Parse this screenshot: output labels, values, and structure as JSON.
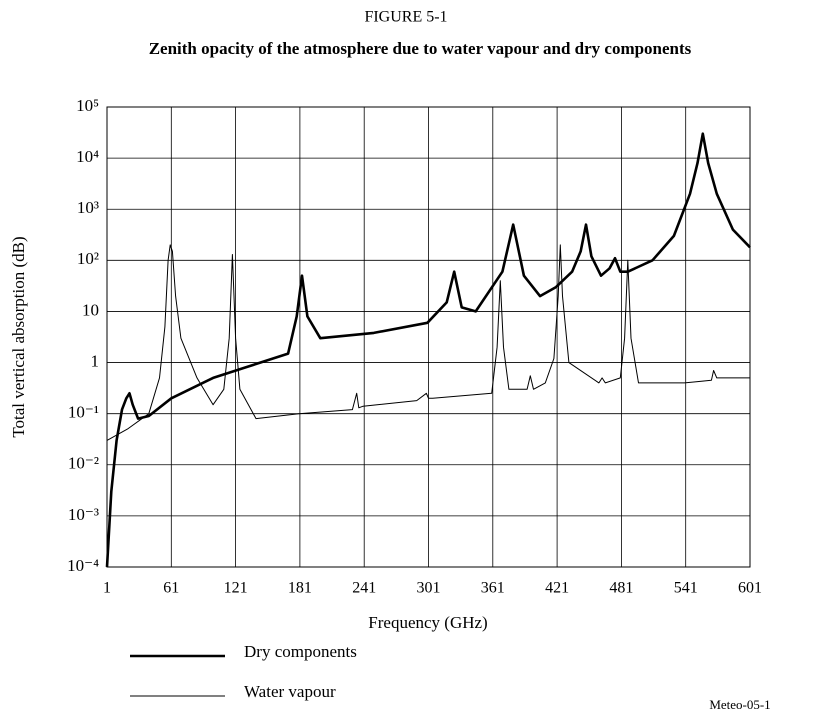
{
  "chart_data": {
    "type": "line",
    "figure_label": "FIGURE 5-1",
    "title": "Zenith opacity of the atmosphere due to water vapour and dry components",
    "xlabel": "Frequency (GHz)",
    "ylabel": "Total vertical absorption (dB)",
    "note": "Meteo-05-1",
    "yscale": "log",
    "grid": true,
    "legend": "bottom",
    "xlim": [
      1,
      601
    ],
    "ylim": [
      0.0001,
      100000
    ],
    "xticks": [
      1,
      61,
      121,
      181,
      241,
      301,
      361,
      421,
      481,
      541,
      601
    ],
    "yticks": [
      {
        "value": 0.0001,
        "label": "10⁻⁴"
      },
      {
        "value": 0.001,
        "label": "10⁻³"
      },
      {
        "value": 0.01,
        "label": "10⁻²"
      },
      {
        "value": 0.1,
        "label": "10⁻¹"
      },
      1,
      10,
      {
        "value": 100,
        "label": "10²"
      },
      {
        "value": 1000,
        "label": "10³"
      },
      {
        "value": 10000,
        "label": "10⁴"
      },
      {
        "value": 100000,
        "label": "10⁵"
      }
    ],
    "series": [
      {
        "name": "Dry components",
        "color": "#000000",
        "width": 2.6,
        "x": [
          1,
          5,
          10,
          15,
          19,
          22,
          25,
          30,
          40,
          61,
          100,
          130,
          170,
          178,
          183,
          188,
          200,
          250,
          300,
          318,
          325,
          332,
          345,
          370,
          380,
          390,
          405,
          420,
          435,
          443,
          448,
          453,
          462,
          470,
          475,
          480,
          487,
          510,
          530,
          545,
          552,
          557,
          562,
          570,
          585,
          601
        ],
        "values": [
          0.0001,
          0.003,
          0.03,
          0.12,
          0.2,
          0.25,
          0.15,
          0.08,
          0.09,
          0.2,
          0.5,
          0.8,
          1.5,
          8,
          50,
          8,
          3,
          3.8,
          6,
          15,
          60,
          12,
          10,
          60,
          500,
          50,
          20,
          30,
          60,
          150,
          500,
          120,
          50,
          70,
          110,
          60,
          60,
          100,
          300,
          2000,
          8000,
          30000,
          8000,
          2000,
          400,
          180
        ]
      },
      {
        "name": "Water vapour",
        "color": "#000000",
        "width": 1,
        "x": [
          1,
          20,
          40,
          50,
          55,
          58,
          60,
          62,
          65,
          70,
          85,
          100,
          110,
          115,
          118,
          121,
          125,
          140,
          180,
          230,
          234,
          236,
          240,
          290,
          299,
          301,
          305,
          360,
          365,
          368,
          371,
          376,
          393,
          396,
          399,
          410,
          418,
          422,
          424,
          426,
          432,
          460,
          463,
          466,
          480,
          484,
          487,
          490,
          497,
          540,
          565,
          567,
          570,
          580,
          601
        ],
        "values": [
          0.03,
          0.05,
          0.1,
          0.5,
          5,
          100,
          200,
          150,
          20,
          3,
          0.5,
          0.15,
          0.3,
          3,
          130,
          3,
          0.3,
          0.08,
          0.1,
          0.12,
          0.25,
          0.13,
          0.14,
          0.18,
          0.25,
          0.2,
          0.2,
          0.25,
          2,
          40,
          2,
          0.3,
          0.3,
          0.55,
          0.3,
          0.4,
          1.2,
          20,
          200,
          20,
          1,
          0.4,
          0.5,
          0.4,
          0.5,
          3,
          100,
          3,
          0.4,
          0.4,
          0.45,
          0.7,
          0.5,
          0.5,
          0.5
        ]
      }
    ]
  }
}
